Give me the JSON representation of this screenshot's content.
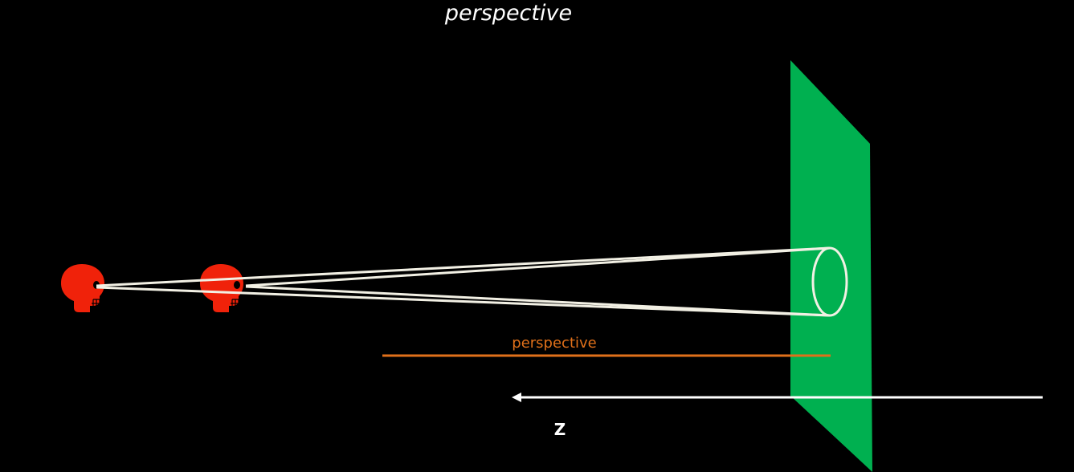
{
  "title": "perspective",
  "distance_label": "perspective",
  "axis_label": "Z",
  "colors": {
    "background": "#000000",
    "title": "#ffffff",
    "plane": "#00b050",
    "skull": "#f0220a",
    "sight_lines": "#f2f0e4",
    "perspective_line": "#e0701a",
    "axis": "#ffffff"
  },
  "icons": {
    "viewer_far": "skull-icon",
    "viewer_near": "skull-icon"
  }
}
